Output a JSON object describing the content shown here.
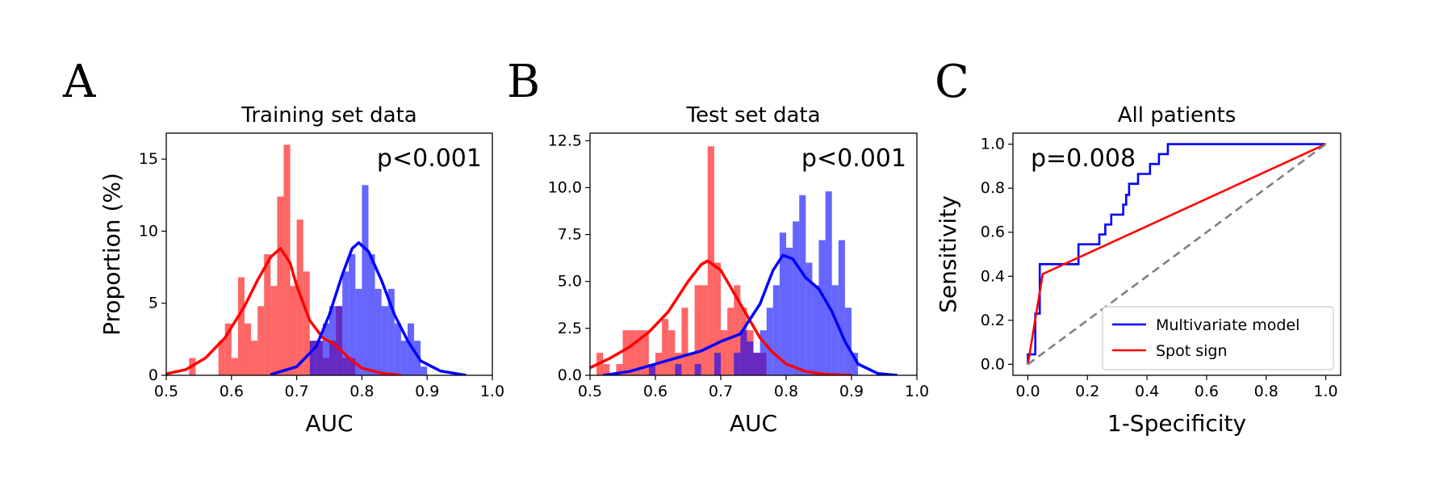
{
  "chart_data": [
    {
      "panel_label": "A",
      "type": "bar",
      "title": "Training set data",
      "xlabel": "AUC",
      "ylabel": "Proportion (%)",
      "xlim": [
        0.5,
        1.0
      ],
      "ylim": [
        0,
        16.8
      ],
      "xticks": [
        "0.5",
        "0.6",
        "0.7",
        "0.8",
        "0.9",
        "1.0"
      ],
      "yticks": [
        "0",
        "5",
        "10",
        "15"
      ],
      "annotation": "p<0.001",
      "grid": false,
      "series": [
        {
          "color": "#ff0000",
          "bin_width": 0.01,
          "bins": [
            [
              0.535,
              1.2
            ],
            [
              0.58,
              2.4
            ],
            [
              0.59,
              3.6
            ],
            [
              0.6,
              1.2
            ],
            [
              0.61,
              6.8
            ],
            [
              0.62,
              3.6
            ],
            [
              0.63,
              2.4
            ],
            [
              0.64,
              4.8
            ],
            [
              0.65,
              8.4
            ],
            [
              0.66,
              6.2
            ],
            [
              0.67,
              12.4
            ],
            [
              0.68,
              16.0
            ],
            [
              0.69,
              6.2
            ],
            [
              0.7,
              10.8
            ],
            [
              0.71,
              7.2
            ],
            [
              0.72,
              2.4
            ],
            [
              0.73,
              2.4
            ],
            [
              0.74,
              1.2
            ],
            [
              0.75,
              2.4
            ],
            [
              0.76,
              4.8
            ],
            [
              0.77,
              1.2
            ],
            [
              0.78,
              1.2
            ]
          ],
          "kde": [
            [
              0.5,
              0.1
            ],
            [
              0.53,
              0.4
            ],
            [
              0.56,
              1.2
            ],
            [
              0.59,
              2.6
            ],
            [
              0.62,
              4.8
            ],
            [
              0.64,
              6.6
            ],
            [
              0.66,
              8.2
            ],
            [
              0.675,
              8.8
            ],
            [
              0.69,
              7.8
            ],
            [
              0.7,
              6.2
            ],
            [
              0.72,
              3.8
            ],
            [
              0.74,
              2.6
            ],
            [
              0.76,
              2.1
            ],
            [
              0.78,
              1.2
            ],
            [
              0.8,
              0.5
            ],
            [
              0.83,
              0.15
            ],
            [
              0.86,
              0.0
            ]
          ]
        },
        {
          "color": "#0000ff",
          "bin_width": 0.01,
          "bins": [
            [
              0.72,
              2.4
            ],
            [
              0.73,
              2.4
            ],
            [
              0.74,
              3.6
            ],
            [
              0.75,
              4.8
            ],
            [
              0.76,
              4.8
            ],
            [
              0.77,
              7.2
            ],
            [
              0.78,
              8.4
            ],
            [
              0.79,
              6.0
            ],
            [
              0.8,
              13.2
            ],
            [
              0.81,
              8.4
            ],
            [
              0.82,
              6.0
            ],
            [
              0.83,
              4.8
            ],
            [
              0.84,
              6.0
            ],
            [
              0.85,
              3.6
            ],
            [
              0.86,
              2.4
            ],
            [
              0.87,
              3.6
            ],
            [
              0.88,
              2.4
            ],
            [
              0.89,
              0.6
            ]
          ],
          "kde": [
            [
              0.66,
              0.05
            ],
            [
              0.7,
              0.6
            ],
            [
              0.73,
              2.0
            ],
            [
              0.75,
              4.2
            ],
            [
              0.77,
              7.0
            ],
            [
              0.785,
              8.8
            ],
            [
              0.795,
              9.2
            ],
            [
              0.81,
              8.6
            ],
            [
              0.83,
              6.6
            ],
            [
              0.85,
              4.2
            ],
            [
              0.87,
              2.4
            ],
            [
              0.89,
              1.0
            ],
            [
              0.92,
              0.3
            ],
            [
              0.96,
              0.0
            ]
          ]
        }
      ]
    },
    {
      "panel_label": "B",
      "type": "bar",
      "title": "Test set data",
      "xlabel": "AUC",
      "ylabel": "",
      "xlim": [
        0.5,
        1.0
      ],
      "ylim": [
        0,
        12.9
      ],
      "xticks": [
        "0.5",
        "0.6",
        "0.7",
        "0.8",
        "0.9",
        "1.0"
      ],
      "yticks": [
        "0.0",
        "2.5",
        "5.0",
        "7.5",
        "10.0",
        "12.5"
      ],
      "annotation": "p<0.001",
      "grid": false,
      "series": [
        {
          "color": "#ff0000",
          "bin_width": 0.01,
          "bins": [
            [
              0.51,
              1.2
            ],
            [
              0.52,
              0.6
            ],
            [
              0.54,
              0.6
            ],
            [
              0.55,
              2.4
            ],
            [
              0.56,
              2.4
            ],
            [
              0.57,
              2.4
            ],
            [
              0.58,
              2.4
            ],
            [
              0.59,
              0.6
            ],
            [
              0.6,
              1.2
            ],
            [
              0.61,
              3.0
            ],
            [
              0.62,
              2.4
            ],
            [
              0.63,
              1.2
            ],
            [
              0.64,
              3.6
            ],
            [
              0.65,
              1.2
            ],
            [
              0.66,
              4.8
            ],
            [
              0.67,
              4.8
            ],
            [
              0.68,
              12.2
            ],
            [
              0.69,
              6.0
            ],
            [
              0.7,
              2.4
            ],
            [
              0.71,
              3.6
            ],
            [
              0.72,
              4.8
            ],
            [
              0.73,
              3.6
            ],
            [
              0.74,
              2.4
            ],
            [
              0.75,
              1.2
            ],
            [
              0.76,
              1.2
            ]
          ],
          "kde": [
            [
              0.5,
              0.4
            ],
            [
              0.53,
              0.9
            ],
            [
              0.56,
              1.5
            ],
            [
              0.59,
              2.3
            ],
            [
              0.62,
              3.4
            ],
            [
              0.65,
              5.0
            ],
            [
              0.67,
              5.9
            ],
            [
              0.68,
              6.1
            ],
            [
              0.7,
              5.6
            ],
            [
              0.72,
              4.4
            ],
            [
              0.74,
              3.2
            ],
            [
              0.76,
              2.0
            ],
            [
              0.78,
              1.2
            ],
            [
              0.8,
              0.6
            ],
            [
              0.83,
              0.2
            ],
            [
              0.86,
              0.05
            ],
            [
              0.9,
              0.0
            ]
          ]
        },
        {
          "color": "#0000ff",
          "bin_width": 0.01,
          "bins": [
            [
              0.59,
              0.6
            ],
            [
              0.63,
              0.6
            ],
            [
              0.66,
              0.6
            ],
            [
              0.69,
              1.2
            ],
            [
              0.72,
              1.2
            ],
            [
              0.73,
              2.4
            ],
            [
              0.74,
              1.8
            ],
            [
              0.75,
              1.2
            ],
            [
              0.76,
              2.4
            ],
            [
              0.77,
              3.6
            ],
            [
              0.78,
              4.8
            ],
            [
              0.79,
              7.6
            ],
            [
              0.8,
              6.8
            ],
            [
              0.81,
              8.2
            ],
            [
              0.82,
              9.6
            ],
            [
              0.83,
              6.0
            ],
            [
              0.84,
              4.8
            ],
            [
              0.85,
              7.2
            ],
            [
              0.86,
              9.8
            ],
            [
              0.87,
              4.8
            ],
            [
              0.88,
              7.2
            ],
            [
              0.89,
              3.6
            ],
            [
              0.9,
              1.2
            ]
          ],
          "kde": [
            [
              0.52,
              0.0
            ],
            [
              0.56,
              0.2
            ],
            [
              0.6,
              0.6
            ],
            [
              0.64,
              1.0
            ],
            [
              0.67,
              1.3
            ],
            [
              0.7,
              1.8
            ],
            [
              0.73,
              2.2
            ],
            [
              0.76,
              3.8
            ],
            [
              0.78,
              5.6
            ],
            [
              0.795,
              6.4
            ],
            [
              0.81,
              6.2
            ],
            [
              0.83,
              5.2
            ],
            [
              0.85,
              4.6
            ],
            [
              0.87,
              3.4
            ],
            [
              0.89,
              1.8
            ],
            [
              0.91,
              0.6
            ],
            [
              0.94,
              0.1
            ],
            [
              0.97,
              0.0
            ]
          ]
        }
      ]
    },
    {
      "panel_label": "C",
      "type": "line",
      "title": "All patients",
      "xlabel": "1-Specificity",
      "ylabel": "Sensitivity",
      "xlim": [
        -0.05,
        1.05
      ],
      "ylim": [
        -0.05,
        1.05
      ],
      "xticks": [
        "0.0",
        "0.2",
        "0.4",
        "0.6",
        "0.8",
        "1.0"
      ],
      "yticks": [
        "0.0",
        "0.2",
        "0.4",
        "0.6",
        "0.8",
        "1.0"
      ],
      "annotation": "p=0.008",
      "grid": false,
      "legend_position": "lower-right",
      "series": [
        {
          "name": "Multivariate model",
          "color": "#0000ff",
          "x": [
            0.0,
            0.0,
            0.025,
            0.025,
            0.04,
            0.04,
            0.17,
            0.17,
            0.24,
            0.24,
            0.26,
            0.26,
            0.28,
            0.28,
            0.32,
            0.32,
            0.33,
            0.33,
            0.34,
            0.34,
            0.37,
            0.37,
            0.41,
            0.41,
            0.44,
            0.44,
            0.47,
            0.47,
            0.85,
            0.85,
            1.0
          ],
          "y": [
            0.0,
            0.045,
            0.045,
            0.23,
            0.23,
            0.455,
            0.455,
            0.545,
            0.545,
            0.59,
            0.59,
            0.635,
            0.635,
            0.68,
            0.68,
            0.725,
            0.725,
            0.77,
            0.77,
            0.82,
            0.82,
            0.865,
            0.865,
            0.91,
            0.91,
            0.955,
            0.955,
            1.0,
            1.0,
            1.0,
            1.0
          ]
        },
        {
          "name": "Spot sign",
          "color": "#ff0000",
          "x": [
            0.0,
            0.05,
            1.0
          ],
          "y": [
            0.0,
            0.41,
            1.0
          ]
        },
        {
          "name": "",
          "color": "#808080",
          "dashed": true,
          "x": [
            0.0,
            1.0
          ],
          "y": [
            0.0,
            1.0
          ]
        }
      ]
    }
  ]
}
